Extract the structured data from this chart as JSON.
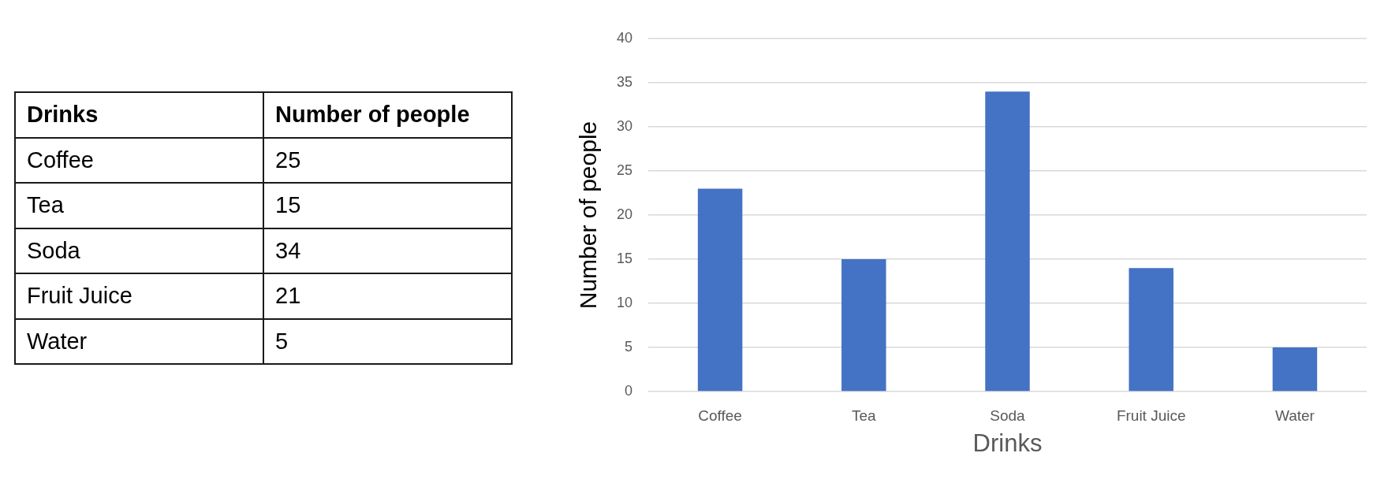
{
  "chart_data": [
    {
      "type": "other",
      "xlabel": "Drinks",
      "ylabel": "Number of people",
      "categories": [
        "Coffee",
        "Tea",
        "Soda",
        "Fruit Juice",
        "Water"
      ],
      "values": [
        25,
        15,
        34,
        21,
        5
      ],
      "data_labels": true
    },
    {
      "type": "bar",
      "xlabel": "Drinks",
      "ylabel": "Number of people",
      "categories": [
        "Coffee",
        "Tea",
        "Soda",
        "Fruit Juice",
        "Water"
      ],
      "values": [
        23,
        15,
        34,
        14,
        5
      ],
      "color": "#4472c4",
      "ylim": [
        0,
        40
      ],
      "yticks": [
        0,
        5,
        10,
        15,
        20,
        25,
        30,
        35,
        40
      ],
      "grid": "y"
    }
  ]
}
